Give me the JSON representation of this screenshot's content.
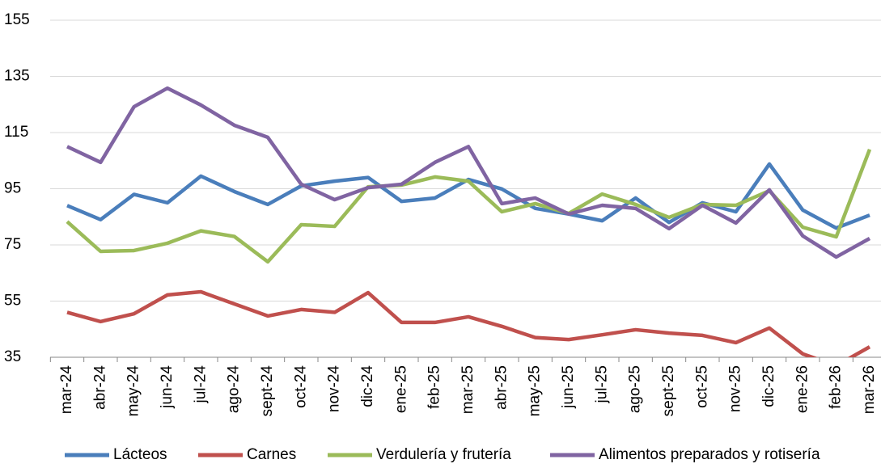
{
  "chart_data": {
    "type": "line",
    "categories": [
      "mar-24",
      "abr-24",
      "may-24",
      "jun-24",
      "jul-24",
      "ago-24",
      "sept-24",
      "oct-24",
      "nov-24",
      "dic-24",
      "ene-25",
      "feb-25",
      "mar-25",
      "abr-25",
      "may-25",
      "jun-25",
      "jul-25",
      "ago-25",
      "sept-25",
      "oct-25",
      "nov-25",
      "dic-25",
      "ene-26",
      "feb-26",
      "mar-26"
    ],
    "series": [
      {
        "name": "Lácteos",
        "color": "#4a7ebb",
        "values": [
          89,
          84,
          93,
          90,
          99.5,
          94,
          89.4,
          96,
          97.7,
          99,
          90.5,
          91.7,
          98.3,
          94.9,
          88,
          86,
          83.6,
          91.7,
          83,
          90,
          86.8,
          103.8,
          87.4,
          81,
          85.6
        ]
      },
      {
        "name": "Carnes",
        "color": "#c0504d",
        "values": [
          51,
          47.7,
          50.5,
          57.2,
          58.3,
          54,
          49.7,
          52,
          51,
          58,
          47.4,
          47.4,
          49.4,
          46,
          42,
          41.3,
          43,
          44.8,
          43.6,
          42.8,
          40.2,
          45.4,
          36.2,
          32,
          38.7
        ]
      },
      {
        "name": "Verdulería y frutería",
        "color": "#9bbb59",
        "values": [
          83.3,
          72.7,
          73,
          75.6,
          80,
          78,
          69,
          82.2,
          81.6,
          95.7,
          96.3,
          99.2,
          97.7,
          86.8,
          89.7,
          86.2,
          93.1,
          89.4,
          84.8,
          89.4,
          89.1,
          94.3,
          81.3,
          77.9,
          109
        ]
      },
      {
        "name": "Alimentos preparados y rotisería",
        "color": "#8064a2",
        "values": [
          110,
          104.4,
          124.2,
          130.8,
          124.8,
          117.6,
          113.3,
          96.6,
          91.1,
          95.4,
          96.6,
          104.4,
          110,
          89.7,
          91.7,
          86,
          89.1,
          88,
          80.8,
          89.1,
          82.8,
          94.6,
          78.2,
          70.7,
          77.3
        ]
      }
    ],
    "ylim": [
      35,
      155
    ],
    "yticks": [
      35,
      55,
      75,
      95,
      115,
      135,
      155
    ],
    "grid": true,
    "legend": "bottom"
  }
}
